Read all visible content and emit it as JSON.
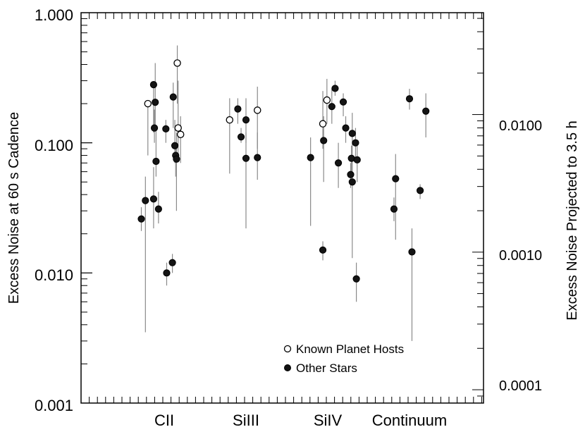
{
  "chart_data": {
    "type": "scatter",
    "title": "",
    "ylabel": "Excess Noise at 60 s Cadence",
    "y2label": "Excess Noise Projected to 3.5 h",
    "yscale": "log",
    "ylim": [
      0.001,
      1.0
    ],
    "y2lim": [
      8e-05,
      0.055
    ],
    "y2scale": "log",
    "yticks": [
      "0.001",
      "0.010",
      "0.100",
      "1.000"
    ],
    "y2ticks": [
      "0.0001",
      "0.0010",
      "0.0100"
    ],
    "categories": [
      "CII",
      "SiIII",
      "SiIV",
      "Continuum"
    ],
    "legend": {
      "position": "bottom-center",
      "entries": [
        "Known Planet Hosts",
        "Other Stars"
      ]
    },
    "series": [
      {
        "name": "Known Planet Hosts",
        "marker": "open-circle",
        "points": [
          {
            "cat": 0,
            "dx": -0.2,
            "y": 0.2,
            "lo": 0.08,
            "hi": 0.2
          },
          {
            "cat": 0,
            "dx": 0.16,
            "y": 0.41,
            "lo": 0.2,
            "hi": 0.56
          },
          {
            "cat": 0,
            "dx": 0.17,
            "y": 0.13,
            "lo": 0.08,
            "hi": 0.3
          },
          {
            "cat": 0,
            "dx": 0.2,
            "y": 0.116,
            "lo": 0.07,
            "hi": 0.16
          },
          {
            "cat": 1,
            "dx": -0.2,
            "y": 0.15,
            "lo": 0.058,
            "hi": 0.22
          },
          {
            "cat": 1,
            "dx": 0.14,
            "y": 0.178,
            "lo": 0.09,
            "hi": 0.27
          },
          {
            "cat": 2,
            "dx": -0.06,
            "y": 0.14,
            "lo": 0.09,
            "hi": 0.25
          },
          {
            "cat": 2,
            "dx": -0.01,
            "y": 0.213,
            "lo": 0.14,
            "hi": 0.31
          }
        ]
      },
      {
        "name": "Other Stars",
        "marker": "filled-circle",
        "points": [
          {
            "cat": 0,
            "dx": -0.28,
            "y": 0.026,
            "lo": 0.021,
            "hi": 0.032
          },
          {
            "cat": 0,
            "dx": -0.23,
            "y": 0.036,
            "lo": 0.0035,
            "hi": 0.055
          },
          {
            "cat": 0,
            "dx": -0.13,
            "y": 0.28,
            "lo": 0.12,
            "hi": 0.28
          },
          {
            "cat": 0,
            "dx": -0.11,
            "y": 0.205,
            "lo": 0.13,
            "hi": 0.41
          },
          {
            "cat": 0,
            "dx": -0.12,
            "y": 0.13,
            "lo": 0.1,
            "hi": 0.18
          },
          {
            "cat": 0,
            "dx": -0.13,
            "y": 0.037,
            "lo": 0.022,
            "hi": 0.065
          },
          {
            "cat": 0,
            "dx": -0.1,
            "y": 0.072,
            "lo": 0.055,
            "hi": 0.13
          },
          {
            "cat": 0,
            "dx": -0.07,
            "y": 0.031,
            "lo": 0.024,
            "hi": 0.042
          },
          {
            "cat": 0,
            "dx": 0.02,
            "y": 0.128,
            "lo": 0.1,
            "hi": 0.15
          },
          {
            "cat": 0,
            "dx": 0.03,
            "y": 0.01,
            "lo": 0.008,
            "hi": 0.012
          },
          {
            "cat": 0,
            "dx": 0.1,
            "y": 0.012,
            "lo": 0.01,
            "hi": 0.014
          },
          {
            "cat": 0,
            "dx": 0.11,
            "y": 0.225,
            "lo": 0.13,
            "hi": 0.29
          },
          {
            "cat": 0,
            "dx": 0.13,
            "y": 0.095,
            "lo": 0.07,
            "hi": 0.15
          },
          {
            "cat": 0,
            "dx": 0.14,
            "y": 0.08,
            "lo": 0.055,
            "hi": 0.1
          },
          {
            "cat": 0,
            "dx": 0.15,
            "y": 0.075,
            "lo": 0.03,
            "hi": 0.12
          },
          {
            "cat": 1,
            "dx": -0.1,
            "y": 0.182,
            "lo": 0.14,
            "hi": 0.22
          },
          {
            "cat": 1,
            "dx": -0.06,
            "y": 0.111,
            "lo": 0.1,
            "hi": 0.13
          },
          {
            "cat": 1,
            "dx": 0.0,
            "y": 0.15,
            "lo": 0.1,
            "hi": 0.22
          },
          {
            "cat": 1,
            "dx": 0.0,
            "y": 0.076,
            "lo": 0.022,
            "hi": 0.12
          },
          {
            "cat": 1,
            "dx": 0.14,
            "y": 0.077,
            "lo": 0.052,
            "hi": 0.12
          },
          {
            "cat": 2,
            "dx": -0.21,
            "y": 0.077,
            "lo": 0.023,
            "hi": 0.11
          },
          {
            "cat": 2,
            "dx": -0.06,
            "y": 0.015,
            "lo": 0.0125,
            "hi": 0.0175
          },
          {
            "cat": 2,
            "dx": -0.05,
            "y": 0.104,
            "lo": 0.05,
            "hi": 0.16
          },
          {
            "cat": 2,
            "dx": 0.05,
            "y": 0.19,
            "lo": 0.14,
            "hi": 0.26
          },
          {
            "cat": 2,
            "dx": 0.09,
            "y": 0.262,
            "lo": 0.23,
            "hi": 0.3
          },
          {
            "cat": 2,
            "dx": 0.13,
            "y": 0.07,
            "lo": 0.045,
            "hi": 0.1
          },
          {
            "cat": 2,
            "dx": 0.19,
            "y": 0.206,
            "lo": 0.16,
            "hi": 0.24
          },
          {
            "cat": 2,
            "dx": 0.22,
            "y": 0.13,
            "lo": 0.1,
            "hi": 0.16
          },
          {
            "cat": 2,
            "dx": 0.3,
            "y": 0.118,
            "lo": 0.08,
            "hi": 0.17
          },
          {
            "cat": 2,
            "dx": 0.29,
            "y": 0.076,
            "lo": 0.06,
            "hi": 0.095
          },
          {
            "cat": 2,
            "dx": 0.28,
            "y": 0.057,
            "lo": 0.045,
            "hi": 0.07
          },
          {
            "cat": 2,
            "dx": 0.3,
            "y": 0.05,
            "lo": 0.013,
            "hi": 0.08
          },
          {
            "cat": 2,
            "dx": 0.34,
            "y": 0.1,
            "lo": 0.07,
            "hi": 0.13
          },
          {
            "cat": 2,
            "dx": 0.36,
            "y": 0.074,
            "lo": 0.05,
            "hi": 0.1
          },
          {
            "cat": 2,
            "dx": 0.35,
            "y": 0.009,
            "lo": 0.006,
            "hi": 0.012
          },
          {
            "cat": 3,
            "dx": -0.19,
            "y": 0.031,
            "lo": 0.025,
            "hi": 0.038
          },
          {
            "cat": 3,
            "dx": -0.17,
            "y": 0.053,
            "lo": 0.018,
            "hi": 0.082
          },
          {
            "cat": 3,
            "dx": 0.0,
            "y": 0.218,
            "lo": 0.18,
            "hi": 0.26
          },
          {
            "cat": 3,
            "dx": 0.03,
            "y": 0.0145,
            "lo": 0.003,
            "hi": 0.022
          },
          {
            "cat": 3,
            "dx": 0.13,
            "y": 0.043,
            "lo": 0.037,
            "hi": 0.048
          },
          {
            "cat": 3,
            "dx": 0.2,
            "y": 0.175,
            "lo": 0.11,
            "hi": 0.24
          }
        ]
      }
    ]
  }
}
